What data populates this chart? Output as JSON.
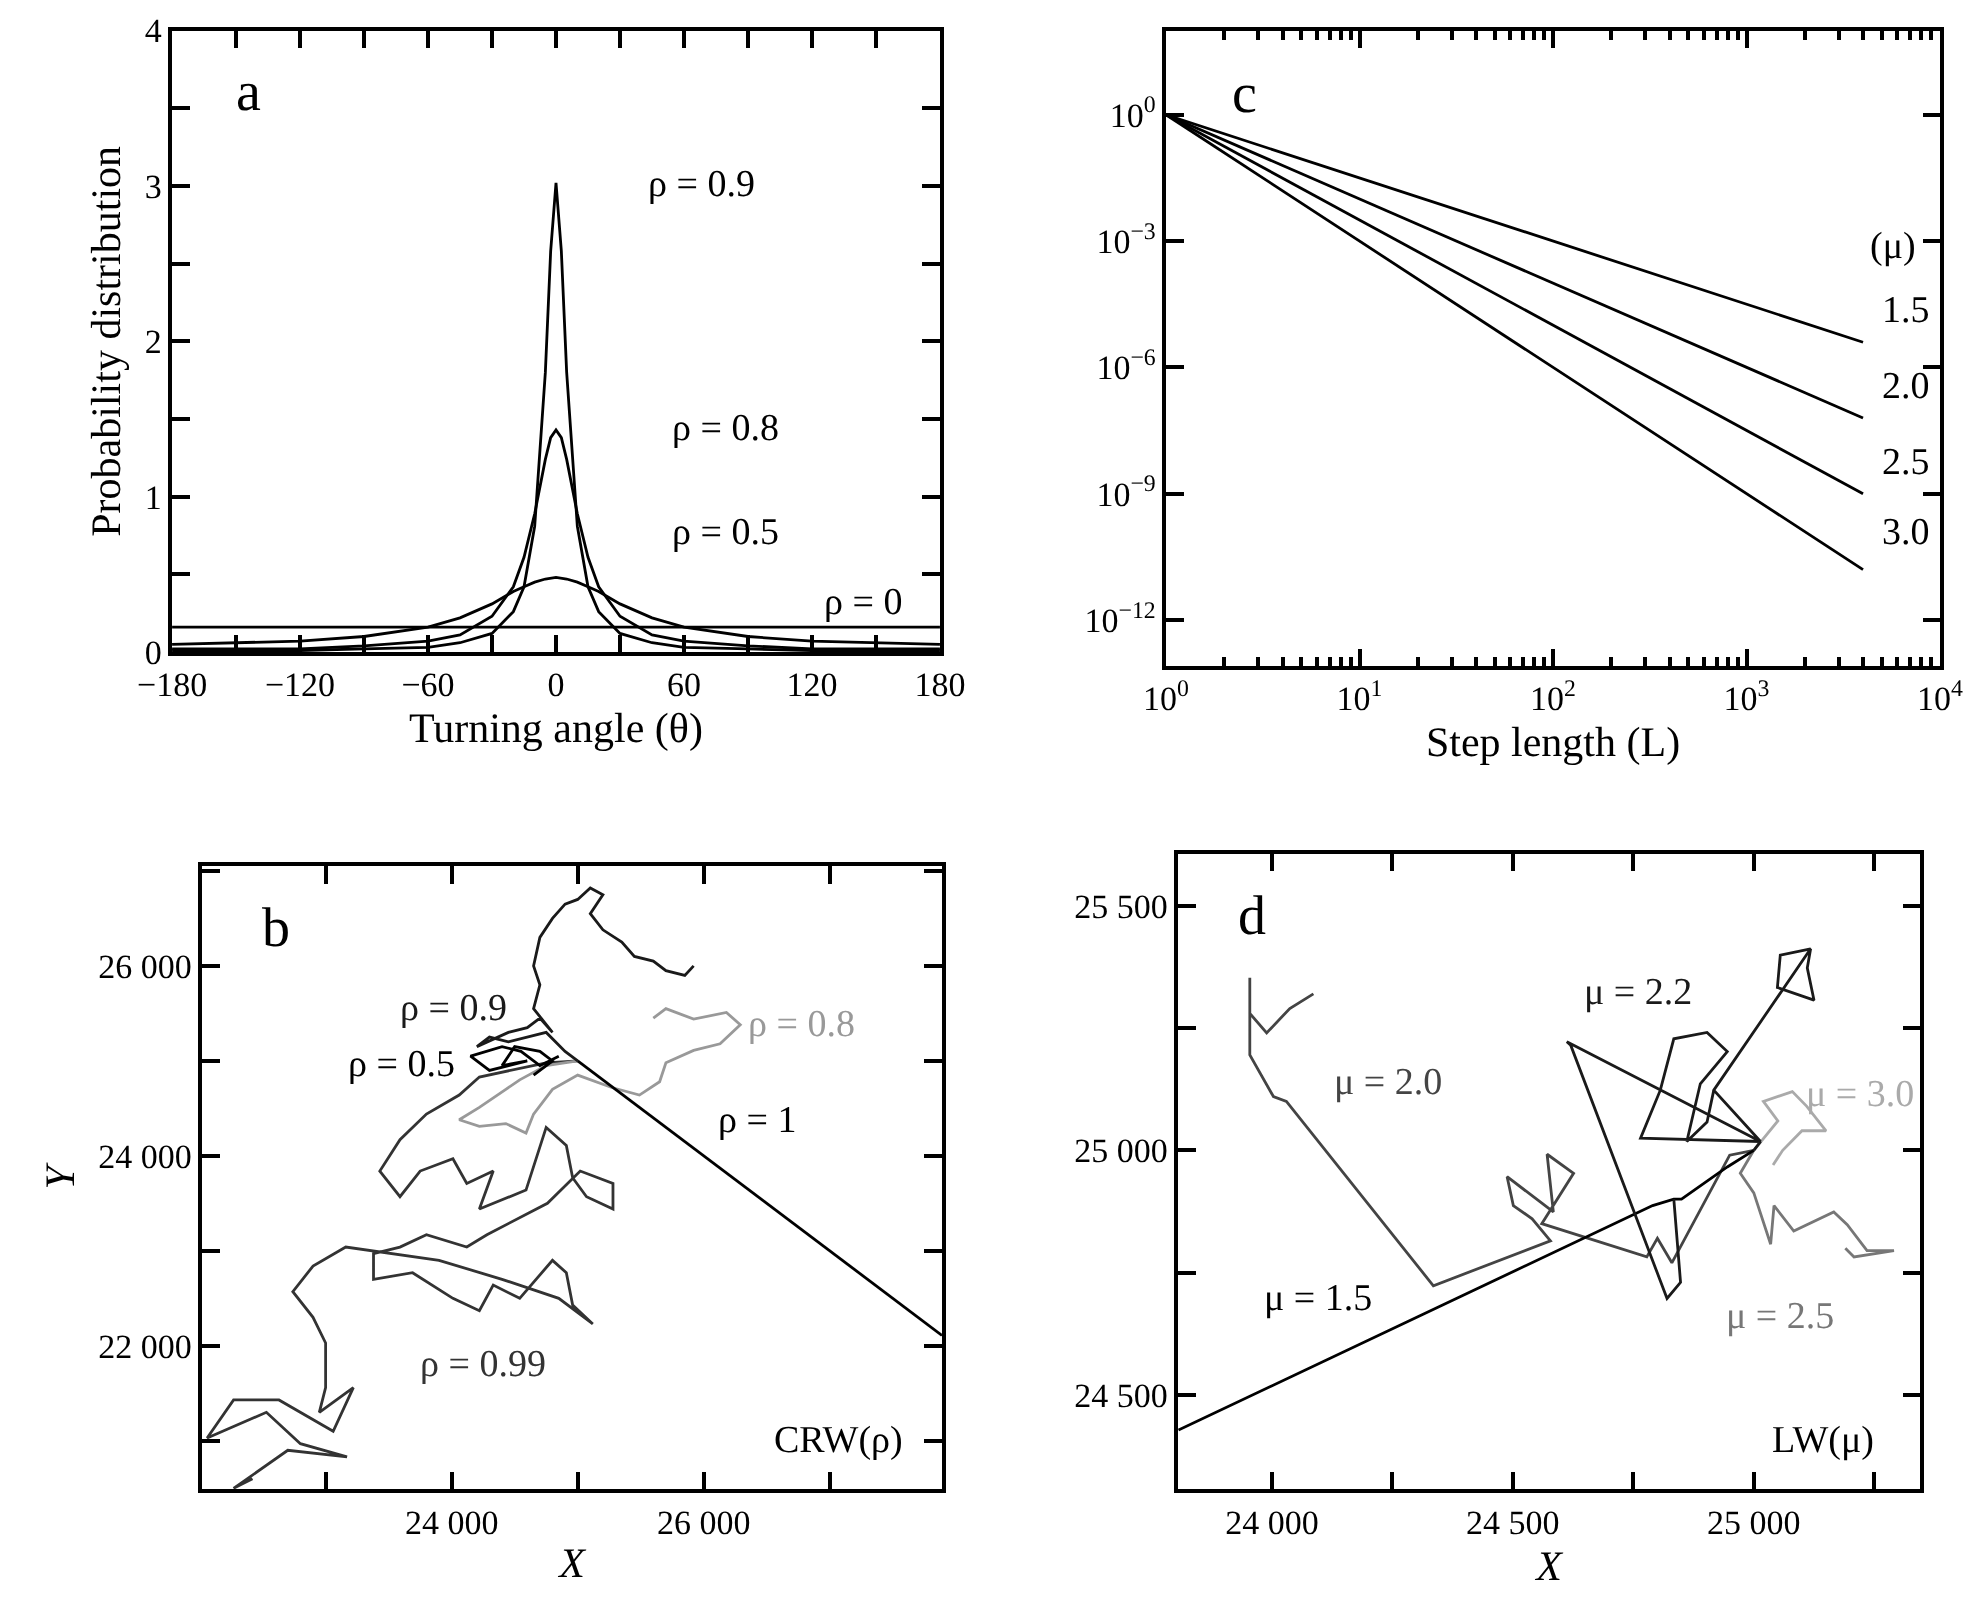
{
  "chart_data": [
    {
      "type": "line",
      "title": "a",
      "xlabel": "Turning angle (θ)",
      "ylabel": "Probability distribution",
      "xlim": [
        -180,
        180
      ],
      "ylim": [
        0,
        4
      ],
      "xticks": [
        {
          "value": -180,
          "label": "−180"
        },
        {
          "value": -150,
          "label": null
        },
        {
          "value": -120,
          "label": "−120"
        },
        {
          "value": -90,
          "label": null
        },
        {
          "value": -60,
          "label": "−60"
        },
        {
          "value": -30,
          "label": null
        },
        0,
        {
          "value": 30,
          "label": null
        },
        60,
        {
          "value": 90,
          "label": null
        },
        120,
        {
          "value": 150,
          "label": null
        },
        180
      ],
      "yticks": [
        0,
        {
          "value": 0.5,
          "label": null
        },
        1,
        {
          "value": 1.5,
          "label": null
        },
        2,
        {
          "value": 2.5,
          "label": null
        },
        3,
        {
          "value": 3.5,
          "label": null
        },
        4
      ],
      "series": [
        {
          "name": "ρ = 0.9",
          "color": "#000000",
          "x": [
            -180,
            -120,
            -90,
            -60,
            -45,
            -30,
            -20,
            -15,
            -10,
            -5,
            -2.5,
            0,
            2.5,
            5,
            10,
            15,
            20,
            30,
            45,
            60,
            90,
            120,
            180
          ],
          "values": [
            0.01,
            0.01,
            0.02,
            0.03,
            0.06,
            0.12,
            0.26,
            0.42,
            0.81,
            1.8,
            2.58,
            3.02,
            2.58,
            1.8,
            0.81,
            0.42,
            0.26,
            0.12,
            0.06,
            0.03,
            0.02,
            0.01,
            0.01
          ]
        },
        {
          "name": "ρ = 0.8",
          "color": "#000000",
          "x": [
            -180,
            -120,
            -90,
            -60,
            -45,
            -30,
            -20,
            -15,
            -10,
            -5,
            -2.5,
            0,
            2.5,
            5,
            10,
            15,
            20,
            30,
            45,
            60,
            90,
            120,
            180
          ],
          "values": [
            0.02,
            0.02,
            0.04,
            0.07,
            0.11,
            0.23,
            0.42,
            0.61,
            0.89,
            1.24,
            1.38,
            1.43,
            1.38,
            1.24,
            0.89,
            0.61,
            0.42,
            0.23,
            0.11,
            0.07,
            0.04,
            0.02,
            0.02
          ]
        },
        {
          "name": "ρ = 0.5",
          "color": "#000000",
          "x": [
            -180,
            -120,
            -90,
            -60,
            -45,
            -30,
            -20,
            -15,
            -10,
            -5,
            0,
            5,
            10,
            15,
            20,
            30,
            45,
            60,
            90,
            120,
            180
          ],
          "values": [
            0.05,
            0.07,
            0.1,
            0.16,
            0.22,
            0.31,
            0.39,
            0.42,
            0.45,
            0.47,
            0.48,
            0.47,
            0.45,
            0.42,
            0.39,
            0.31,
            0.22,
            0.16,
            0.1,
            0.07,
            0.05
          ]
        },
        {
          "name": "ρ = 0",
          "color": "#000000",
          "x": [
            -180,
            180
          ],
          "values": [
            0.16,
            0.16
          ]
        }
      ]
    },
    {
      "type": "line",
      "title": "c",
      "xlabel": "Step length (L)",
      "log": "xy",
      "xlim": [
        1,
        10000
      ],
      "ylim": [
        8e-14,
        100
      ],
      "xticks": [
        {
          "value": 1,
          "label": "10$^{0}$"
        },
        {
          "value": 10,
          "label": "10$^{1}$"
        },
        {
          "value": 100,
          "label": "10$^{2}$"
        },
        {
          "value": 1000,
          "label": "10$^{3}$"
        },
        {
          "value": 10000,
          "label": "10$^{4}$"
        }
      ],
      "yticks": [
        {
          "value": 1,
          "label": "10$^{0}$"
        },
        {
          "value": 0.001,
          "label": "10$^{−3}$"
        },
        {
          "value": 1e-06,
          "label": "10$^{−6}$"
        },
        {
          "value": 1e-09,
          "label": "10$^{−9}$"
        },
        {
          "value": 1e-12,
          "label": "10$^{−12}$"
        }
      ],
      "legend": "right",
      "legend_title": "(μ)",
      "series": [
        {
          "name": "1.5",
          "color": "#000000",
          "x": [
            1,
            4000
          ],
          "values": [
            1,
            3.95e-06
          ]
        },
        {
          "name": "2.0",
          "color": "#000000",
          "x": [
            1,
            4000
          ],
          "values": [
            1,
            6.25e-08
          ]
        },
        {
          "name": "2.5",
          "color": "#000000",
          "x": [
            1,
            4000
          ],
          "values": [
            1,
            9.9e-10
          ]
        },
        {
          "name": "3.0",
          "color": "#000000",
          "x": [
            1,
            4000
          ],
          "values": [
            1,
            1.56e-11
          ]
        }
      ]
    },
    {
      "type": "line",
      "title": "b",
      "xlabel": "X",
      "ylabel": "Y",
      "xlim": [
        22020,
        27890
      ],
      "ylim": [
        20490,
        27050
      ],
      "xticks": [
        {
          "value": 23000,
          "label": null
        },
        {
          "value": 24000,
          "label": "24 000"
        },
        {
          "value": 25000,
          "label": null
        },
        {
          "value": 26000,
          "label": "26 000"
        },
        {
          "value": 27000,
          "label": null
        }
      ],
      "yticks": [
        {
          "value": 21000,
          "label": null
        },
        {
          "value": 22000,
          "label": "22 000"
        },
        {
          "value": 23000,
          "label": null
        },
        {
          "value": 24000,
          "label": "24 000"
        },
        {
          "value": 25000,
          "label": null
        },
        {
          "value": 26000,
          "label": "26 000"
        },
        {
          "value": 27000,
          "label": null
        }
      ],
      "annotations": [
        "CRW(ρ)"
      ],
      "series": [
        {
          "name": "ρ = 0.99",
          "color": "#333333",
          "x": [
            25000,
            24750,
            24220,
            24060,
            23800,
            23590,
            23430,
            23590,
            23750,
            24010,
            24120,
            24330,
            24220,
            24590,
            24750,
            24910,
            24960,
            25070,
            25280,
            25280,
            25020,
            24760,
            24280,
            24120,
            23800,
            23590,
            23380,
            23380,
            23690,
            24010,
            24220,
            24330,
            24540,
            24800,
            24910,
            24960,
            25120,
            24850,
            24400,
            23900,
            23160,
            22900,
            22740,
            22900,
            23000,
            23000,
            22950,
            23220,
            23060,
            22630,
            22270,
            22060,
            22530,
            22800,
            23170,
            22700,
            22270,
            22420
          ],
          "values": [
            25000,
            24980,
            24830,
            24640,
            24440,
            24170,
            23840,
            23570,
            23840,
            23970,
            23710,
            23840,
            23440,
            23640,
            24300,
            24110,
            23770,
            23570,
            23440,
            23710,
            23840,
            23500,
            23170,
            23040,
            23170,
            23040,
            22970,
            22700,
            22770,
            22500,
            22370,
            22640,
            22500,
            22900,
            22770,
            22430,
            22230,
            22500,
            22700,
            22900,
            23040,
            22840,
            22570,
            22300,
            22030,
            21560,
            21300,
            21560,
            21100,
            21430,
            21430,
            21030,
            21300,
            20970,
            20830,
            20900,
            20500,
            20600
          ]
        },
        {
          "name": "ρ = 0.8",
          "color": "#999999",
          "x": [
            25000,
            24750,
            24540,
            24430,
            24220,
            24060,
            24220,
            24430,
            24590,
            24650,
            24800,
            25000,
            25270,
            25490,
            25650,
            25700,
            25920,
            26130,
            26290,
            26180,
            25920,
            25700,
            25600
          ],
          "values": [
            25000,
            24950,
            24800,
            24700,
            24510,
            24380,
            24310,
            24340,
            24240,
            24440,
            24700,
            24850,
            24720,
            24640,
            24780,
            24980,
            25110,
            25180,
            25380,
            25510,
            25440,
            25550,
            25450
          ]
        },
        {
          "name": "ρ = 0.9",
          "color": "#1a1a1a",
          "x": [
            25000,
            24900,
            24750,
            24450,
            24300,
            24200,
            24450,
            24600,
            24700,
            24800,
            24650,
            24700,
            24650,
            24700,
            24800,
            24900,
            25000,
            25100,
            25200,
            25100,
            25200,
            25350,
            25450,
            25600,
            25700,
            25850,
            25920
          ],
          "values": [
            25000,
            25100,
            25300,
            25200,
            25250,
            25150,
            25300,
            25350,
            25450,
            25300,
            25550,
            25800,
            26000,
            26300,
            26500,
            26650,
            26700,
            26820,
            26750,
            26550,
            26380,
            26250,
            26100,
            26050,
            25950,
            25900,
            26000
          ]
        },
        {
          "name": "ρ = 0.5",
          "color": "#000000",
          "x": [
            24850,
            24700,
            24550,
            24400,
            24150,
            24300,
            24600,
            24400,
            24500,
            24700,
            24800,
            24650
          ],
          "values": [
            25050,
            24950,
            25100,
            25150,
            25050,
            24900,
            25000,
            24950,
            25150,
            25100,
            25000,
            24850
          ]
        },
        {
          "name": "ρ = 1",
          "color": "#000000",
          "x": [
            25000,
            27890
          ],
          "values": [
            25000,
            22110
          ]
        }
      ]
    },
    {
      "type": "line",
      "title": "d",
      "xlabel": "X",
      "xlim": [
        23805,
        25345
      ],
      "ylim": [
        24307,
        25606
      ],
      "xticks": [
        {
          "value": 24000,
          "label": "24 000"
        },
        {
          "value": 24250,
          "label": null
        },
        {
          "value": 24500,
          "label": "24 500"
        },
        {
          "value": 24750,
          "label": null
        },
        {
          "value": 25000,
          "label": "25 000"
        },
        {
          "value": 25250,
          "label": null
        }
      ],
      "yticks": [
        {
          "value": 24500,
          "label": "24 500"
        },
        {
          "value": 24750,
          "label": null
        },
        {
          "value": 25000,
          "label": "25 000"
        },
        {
          "value": 25250,
          "label": null
        },
        {
          "value": 25500,
          "label": "25 500"
        }
      ],
      "annotations": [
        "LW(μ)"
      ],
      "series": [
        {
          "name": "μ = 2.0",
          "color": "#444444",
          "x": [
            24086,
            24037,
            23989,
            23954,
            23954,
            23954,
            24003,
            24030,
            24335,
            24578,
            24540,
            24501,
            24488,
            24584,
            24571,
            24626,
            24560,
            24778,
            24800,
            24830,
            24950,
            25000
          ],
          "values": [
            25320,
            25290,
            25240,
            25280,
            25353,
            25195,
            25110,
            25100,
            24723,
            24815,
            24860,
            24887,
            24946,
            24874,
            24992,
            24953,
            24850,
            24782,
            24820,
            24770,
            24990,
            25000
          ]
        },
        {
          "name": "μ = 2.5",
          "color": "#777777",
          "x": [
            25000,
            24972,
            25000,
            25035,
            25042,
            25083,
            25166,
            25194,
            25235,
            25291,
            25208,
            25190
          ],
          "values": [
            25000,
            24953,
            24913,
            24808,
            24887,
            24835,
            24874,
            24848,
            24795,
            24795,
            24782,
            24800
          ]
        },
        {
          "name": "μ = 3.0",
          "color": "#aaaaaa",
          "x": [
            25000,
            25050,
            25020,
            25080,
            25110,
            25150,
            25100,
            25060,
            25040
          ],
          "values": [
            25000,
            25060,
            25100,
            25120,
            25090,
            25040,
            25040,
            25000,
            24970
          ]
        },
        {
          "name": "μ = 1.5",
          "color": "#000000",
          "x": [
            25000,
            24945,
            24850,
            24834,
            24790,
            23806
          ],
          "values": [
            25000,
            24966,
            24900,
            24900,
            24887,
            24428
          ]
        },
        {
          "name": "μ = 2.2",
          "color": "#1a1a1a",
          "x": [
            25000,
            25014,
            24765,
            24806,
            24834,
            24903,
            24945,
            24889,
            24861,
            24903,
            24917,
            25118,
            25055,
            25049,
            25125,
            25111,
            25118,
            24917,
            25014,
            24612,
            24620,
            24820,
            24848,
            24834
          ],
          "values": [
            25000,
            25018,
            25025,
            25123,
            25228,
            25241,
            25202,
            25136,
            25018,
            25058,
            25123,
            25412,
            25399,
            25333,
            25307,
            25373,
            25412,
            25123,
            25018,
            25222,
            25215,
            24697,
            24730,
            24900
          ]
        }
      ]
    }
  ]
}
